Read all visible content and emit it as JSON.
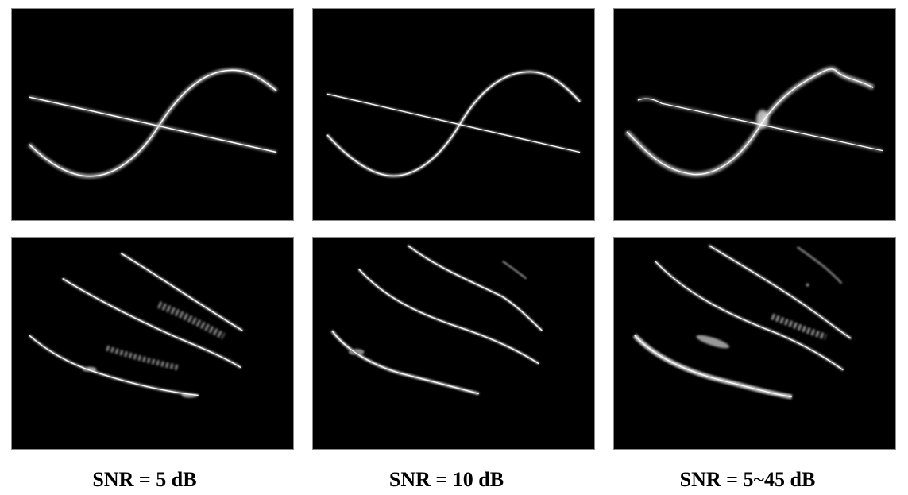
{
  "captions": [
    "SNR = 5 dB",
    "SNR = 10 dB",
    "SNR = 5~45 dB"
  ],
  "colors": {
    "panel_background": "#000000",
    "trace": "#ffffff",
    "caption_text": "#000000"
  }
}
